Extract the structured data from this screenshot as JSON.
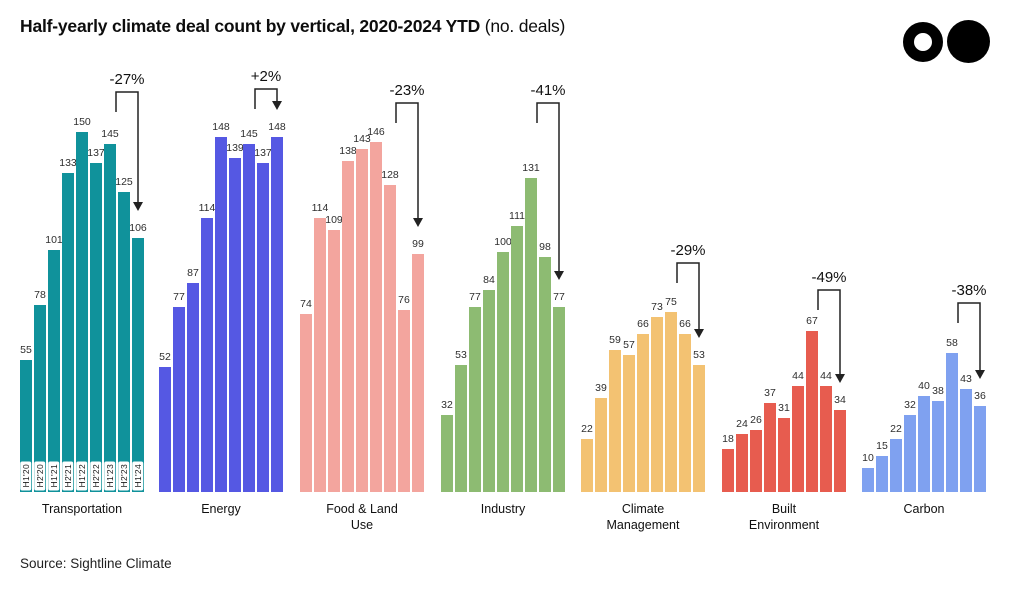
{
  "header": {
    "title_bold": "Half-yearly climate deal count by vertical, 2020-2024 YTD",
    "title_suffix": " (no. deals)"
  },
  "logo": {
    "icons": [
      "ring-circle-icon",
      "filled-circle-icon"
    ]
  },
  "footer": {
    "source": "Source: Sightline Climate"
  },
  "chart_data": {
    "type": "bar",
    "title": "Half-yearly climate deal count by vertical, 2020-2024 YTD",
    "unit": "no. deals",
    "ylim": [
      0,
      160
    ],
    "grid": false,
    "legend": "none",
    "categories": [
      "H1'20",
      "H2'20",
      "H1'21",
      "H2'21",
      "H1'22",
      "H2'22",
      "H1'23",
      "H2'23",
      "H1'24"
    ],
    "comparison": {
      "from_period": "H1'23",
      "to_period": "H1'24"
    },
    "series": [
      {
        "name": "Transportation",
        "label": "Transportation",
        "color": "#10929B",
        "values": [
          55,
          78,
          101,
          133,
          150,
          137,
          145,
          125,
          106
        ],
        "change": "-27%"
      },
      {
        "name": "Energy",
        "label": "Energy",
        "color": "#5558E3",
        "values": [
          52,
          77,
          87,
          114,
          148,
          139,
          145,
          137,
          148
        ],
        "change": "+2%"
      },
      {
        "name": "Food & Land Use",
        "label": "Food & Land\nUse",
        "color": "#F3A59E",
        "values": [
          74,
          114,
          109,
          138,
          143,
          146,
          128,
          76,
          99
        ],
        "change": "-23%"
      },
      {
        "name": "Industry",
        "label": "Industry",
        "color": "#8DBB72",
        "values": [
          32,
          53,
          77,
          84,
          100,
          111,
          131,
          98,
          77
        ],
        "change": "-41%"
      },
      {
        "name": "Climate Management",
        "label": "Climate\nManagement",
        "color": "#F3C272",
        "values": [
          22,
          39,
          59,
          57,
          66,
          73,
          75,
          66,
          53
        ],
        "change": "-29%"
      },
      {
        "name": "Built Environment",
        "label": "Built\nEnvironment",
        "color": "#E75C4F",
        "values": [
          18,
          24,
          26,
          37,
          31,
          44,
          67,
          44,
          34
        ],
        "change": "-49%"
      },
      {
        "name": "Carbon",
        "label": "Carbon",
        "color": "#7FA1F0",
        "values": [
          10,
          15,
          22,
          32,
          40,
          38,
          58,
          43,
          36
        ],
        "change": "-38%"
      }
    ]
  }
}
